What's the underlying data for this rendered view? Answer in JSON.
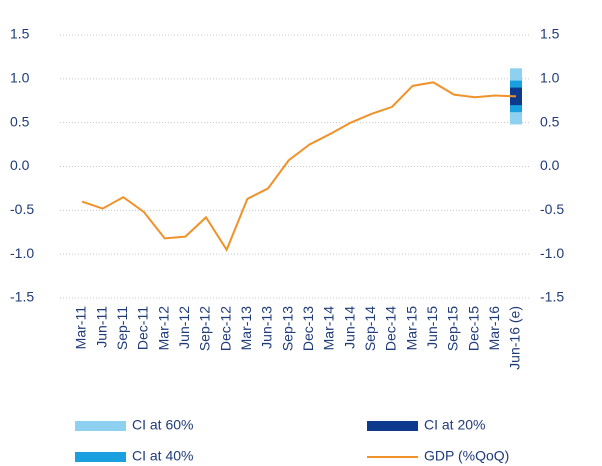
{
  "chart_data": {
    "type": "line",
    "categories": [
      "Mar-11",
      "Jun-11",
      "Sep-11",
      "Dec-11",
      "Mar-12",
      "Jun-12",
      "Sep-12",
      "Dec-12",
      "Mar-13",
      "Jun-13",
      "Sep-13",
      "Dec-13",
      "Mar-14",
      "Jun-14",
      "Sep-14",
      "Dec-14",
      "Mar-15",
      "Jun-15",
      "Sep-15",
      "Dec-15",
      "Mar-16",
      "Jun-16 (e)"
    ],
    "series": [
      {
        "name": "GDP (%QoQ)",
        "color": "#f0922b",
        "values": [
          -0.4,
          -0.48,
          -0.35,
          -0.52,
          -0.82,
          -0.8,
          -0.58,
          -0.95,
          -0.37,
          -0.25,
          0.07,
          0.25,
          0.37,
          0.5,
          0.6,
          0.68,
          0.92,
          0.96,
          0.82,
          0.79,
          0.81,
          0.8
        ]
      }
    ],
    "intervals": [
      {
        "name": "CI at 60%",
        "color": "#8ed0f0",
        "low": 0.48,
        "high": 1.12
      },
      {
        "name": "CI at 40%",
        "color": "#1aa0de",
        "low": 0.62,
        "high": 0.98
      },
      {
        "name": "CI at 20%",
        "color": "#0d3a8c",
        "low": 0.7,
        "high": 0.9
      }
    ],
    "ylim": [
      -1.5,
      1.5
    ],
    "yticks": [
      1.5,
      {
        "value": 1,
        "label": "1.0"
      },
      0.5,
      {
        "value": 0,
        "label": "0.0"
      },
      -0.5,
      {
        "value": -1,
        "label": "-1.0"
      },
      -1.5
    ],
    "y2lim": [
      -1.5,
      1.5
    ],
    "y2ticks": [
      1.5,
      {
        "value": 1,
        "label": "1.0"
      },
      0.5,
      {
        "value": 0,
        "label": "0.0"
      },
      -0.5,
      {
        "value": -1,
        "label": "-1.0"
      },
      -1.5
    ],
    "grid": true
  }
}
